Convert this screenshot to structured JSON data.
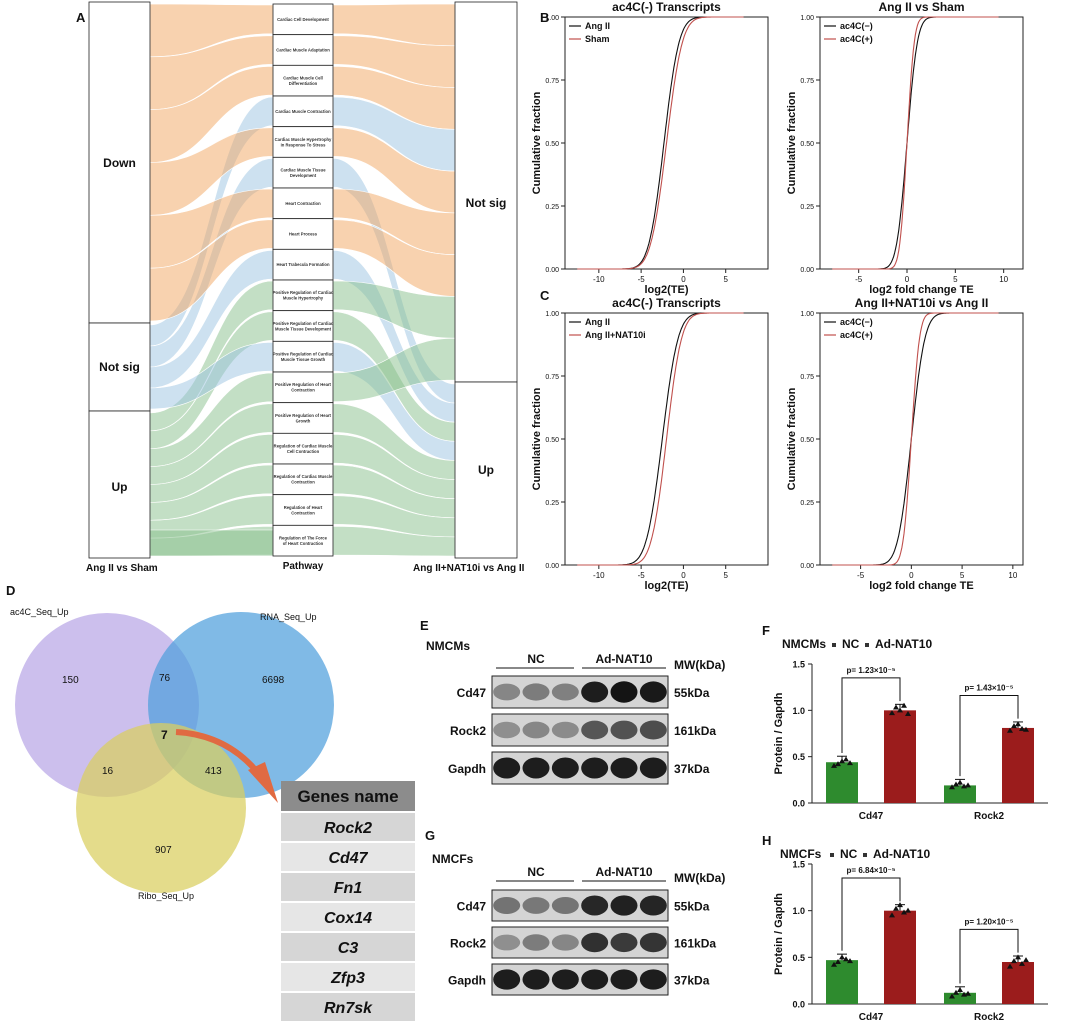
{
  "panels": {
    "A": {
      "letter": "A",
      "left_nodes": [
        "Down",
        "Not sig",
        "Up"
      ],
      "right_nodes": [
        "Not sig",
        "Up"
      ],
      "left_axis_label": "Ang II vs Sham",
      "mid_axis_label": "Pathway",
      "right_axis_label": "Ang II+NAT10i vs Ang II",
      "pathways": [
        [
          "Cardiac Cell Development"
        ],
        [
          "Cardiac Muscle Adaptation"
        ],
        [
          "Cardiac Muscle Cell",
          "Differentiation"
        ],
        [
          "Cardiac Muscle Contraction"
        ],
        [
          "Cardiac Muscle Hypertrophy",
          "In Response To Stress"
        ],
        [
          "Cardiac Muscle Tissue",
          "Development"
        ],
        [
          "Heart Contraction"
        ],
        [
          "Heart Process"
        ],
        [
          "Heart Trabecula Formation"
        ],
        [
          "Positive Regulation of Cardiac",
          "Muscle Hypertrophy"
        ],
        [
          "Positive Regulation of Cardiac",
          "Muscle Tissue Development"
        ],
        [
          "Positive Regulation of Cardiac",
          "Muscle Tissue Growth"
        ],
        [
          "Positive Regulation of Heart",
          "Contraction"
        ],
        [
          "Positive Regulation of Heart",
          "Growth"
        ],
        [
          "Regulation of Cardiac Muscle",
          "Cell Contraction"
        ],
        [
          "Regulation of Cardiac Muscle",
          "Contraction"
        ],
        [
          "Regulation of Heart",
          "Contraction"
        ],
        [
          "Regulation of The Force",
          "of Heart Contraction"
        ]
      ],
      "colors": {
        "down": "#f2a55f",
        "notsig": "#9cc3e2",
        "up": "#88bf8c"
      }
    },
    "B": {
      "letter": "B",
      "left": {
        "type": "line",
        "title": "ac4C(-) Transcripts",
        "xlabel": "log2(TE)",
        "ylabel": "Cumulative fraction",
        "xticks": [
          "-10",
          "-5",
          "0",
          "5"
        ],
        "yticks": [
          "0.00",
          "0.25",
          "0.50",
          "0.75",
          "1.00"
        ],
        "xlim": [
          -14,
          10
        ],
        "ylim": [
          0,
          1
        ],
        "legend": [
          "Ang II",
          "Sham"
        ],
        "series": [
          {
            "name": "Ang II",
            "mu": -2.3,
            "s": 1.0,
            "color": "#111111"
          },
          {
            "name": "Sham",
            "mu": -2.0,
            "s": 1.05,
            "color": "#c0504d"
          }
        ]
      },
      "right": {
        "type": "line",
        "title": "Ang II vs Sham",
        "xlabel": "log2 fold change TE",
        "ylabel": "Cumulative fraction",
        "xticks": [
          "-5",
          "0",
          "5",
          "10"
        ],
        "yticks": [
          "0.00",
          "0.25",
          "0.50",
          "0.75",
          "1.00"
        ],
        "xlim": [
          -9,
          12
        ],
        "ylim": [
          0,
          1
        ],
        "legend": [
          "ac4C(−)",
          "ac4C(+)"
        ],
        "series": [
          {
            "name": "ac4C(−)",
            "mu": 0.0,
            "s": 0.6,
            "color": "#111111"
          },
          {
            "name": "ac4C(+)",
            "mu": 0.0,
            "s": 0.42,
            "color": "#c0504d"
          }
        ]
      }
    },
    "C": {
      "letter": "C",
      "left": {
        "type": "line",
        "title": "ac4C(-) Transcripts",
        "xlabel": "log2(TE)",
        "ylabel": "Cumulative fraction",
        "xticks": [
          "-10",
          "-5",
          "0",
          "5"
        ],
        "yticks": [
          "0.00",
          "0.25",
          "0.50",
          "0.75",
          "1.00"
        ],
        "xlim": [
          -14,
          10
        ],
        "ylim": [
          0,
          1
        ],
        "legend": [
          "Ang II",
          "Ang II+NAT10i"
        ],
        "series": [
          {
            "name": "Ang II",
            "mu": -2.5,
            "s": 1.05,
            "color": "#111111"
          },
          {
            "name": "Ang II+NAT10i",
            "mu": -2.0,
            "s": 1.0,
            "color": "#c0504d"
          }
        ]
      },
      "right": {
        "type": "line",
        "title": "Ang II+NAT10i vs Ang II",
        "xlabel": "log2 fold change TE",
        "ylabel": "Cumulative fraction",
        "xticks": [
          "-5",
          "0",
          "5",
          "10"
        ],
        "yticks": [
          "0.00",
          "0.25",
          "0.50",
          "0.75",
          "1.00"
        ],
        "xlim": [
          -9,
          11
        ],
        "ylim": [
          0,
          1
        ],
        "legend": [
          "ac4C(−)",
          "ac4C(+)"
        ],
        "series": [
          {
            "name": "ac4C(−)",
            "mu": 0.0,
            "s": 0.75,
            "color": "#111111"
          },
          {
            "name": "ac4C(+)",
            "mu": 0.0,
            "s": 0.45,
            "color": "#c0504d"
          }
        ]
      }
    },
    "D": {
      "letter": "D",
      "sets": [
        "ac4C_Seq_Up",
        "RNA_Seq_Up",
        "Ribo_Seq_Up"
      ],
      "counts": {
        "a_only": "150",
        "ab": "76",
        "b_only": "6698",
        "abc": "7",
        "ac": "16",
        "bc": "413",
        "c_only": "907"
      },
      "table_header": "Genes name",
      "genes": [
        {
          "name": "Rock2",
          "color": "#b22222"
        },
        {
          "name": "Cd47",
          "color": "#b22222"
        },
        {
          "name": "Fn1",
          "color": "#b22222"
        },
        {
          "name": "Cox14",
          "color": "#111111"
        },
        {
          "name": "C3",
          "color": "#111111"
        },
        {
          "name": "Zfp3",
          "color": "#111111"
        },
        {
          "name": "Rn7sk",
          "color": "#111111"
        }
      ]
    },
    "E": {
      "letter": "E",
      "cell": "NMCMs",
      "groups": [
        "NC",
        "Ad-NAT10"
      ],
      "mw_header": "MW(kDa)",
      "rows": [
        {
          "protein": "Cd47",
          "mw": "55kDa",
          "intensity": [
            0.35,
            0.4,
            0.38,
            0.9,
            0.95,
            0.92
          ]
        },
        {
          "protein": "Rock2",
          "mw": "161kDa",
          "intensity": [
            0.3,
            0.35,
            0.32,
            0.6,
            0.62,
            0.65
          ]
        },
        {
          "protein": "Gapdh",
          "mw": "37kDa",
          "intensity": [
            0.9,
            0.9,
            0.9,
            0.9,
            0.9,
            0.9
          ]
        }
      ]
    },
    "F": {
      "letter": "F",
      "cell": "NMCMs",
      "chart_data": {
        "type": "bar",
        "categories": [
          "Cd47",
          "Rock2"
        ],
        "series": [
          {
            "name": "NC",
            "values": [
              0.44,
              0.19
            ],
            "color": "#2e8b2e"
          },
          {
            "name": "Ad-NAT10",
            "values": [
              1.0,
              0.81
            ],
            "color": "#9b1c1c"
          }
        ],
        "ylabel": "Protein / Gapdh",
        "ylim": [
          0,
          1.5
        ],
        "yticks": [
          "0.0",
          "0.5",
          "1.0",
          "1.5"
        ],
        "pvalues": [
          "p= 1.23×10⁻⁵",
          "p= 1.43×10⁻⁵"
        ],
        "points": [
          [
            0.4,
            0.42,
            0.45,
            0.47,
            0.43
          ],
          [
            0.97,
            1.03,
            1.0,
            1.05,
            0.96
          ],
          [
            0.17,
            0.2,
            0.22,
            0.18,
            0.19
          ],
          [
            0.78,
            0.83,
            0.85,
            0.8,
            0.79
          ]
        ]
      }
    },
    "G": {
      "letter": "G",
      "cell": "NMCFs",
      "groups": [
        "NC",
        "Ad-NAT10"
      ],
      "mw_header": "MW(kDa)",
      "rows": [
        {
          "protein": "Cd47",
          "mw": "55kDa",
          "intensity": [
            0.45,
            0.42,
            0.44,
            0.85,
            0.88,
            0.86
          ]
        },
        {
          "protein": "Rock2",
          "mw": "161kDa",
          "intensity": [
            0.3,
            0.4,
            0.35,
            0.8,
            0.75,
            0.78
          ]
        },
        {
          "protein": "Gapdh",
          "mw": "37kDa",
          "intensity": [
            0.9,
            0.9,
            0.9,
            0.9,
            0.9,
            0.9
          ]
        }
      ]
    },
    "H": {
      "letter": "H",
      "cell": "NMCFs",
      "chart_data": {
        "type": "bar",
        "categories": [
          "Cd47",
          "Rock2"
        ],
        "series": [
          {
            "name": "NC",
            "values": [
              0.47,
              0.12
            ],
            "color": "#2e8b2e"
          },
          {
            "name": "Ad-NAT10",
            "values": [
              1.0,
              0.45
            ],
            "color": "#9b1c1c"
          }
        ],
        "ylabel": "Protein / Gapdh",
        "ylim": [
          0,
          1.5
        ],
        "yticks": [
          "0.0",
          "0.5",
          "1.0",
          "1.5"
        ],
        "pvalues": [
          "p= 6.84×10⁻⁵",
          "p= 1.20×10⁻⁵"
        ],
        "points": [
          [
            0.42,
            0.45,
            0.5,
            0.48,
            0.46
          ],
          [
            0.95,
            1.02,
            1.06,
            0.98,
            1.0
          ],
          [
            0.08,
            0.12,
            0.15,
            0.1,
            0.11
          ],
          [
            0.4,
            0.46,
            0.5,
            0.43,
            0.47
          ]
        ]
      }
    }
  }
}
